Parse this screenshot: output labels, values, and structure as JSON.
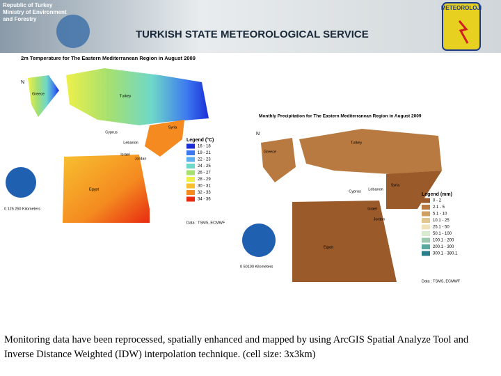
{
  "header": {
    "ministry": [
      "Republic of Turkey",
      "Ministry of Environment",
      "and Forestry"
    ],
    "title": "TURKISH STATE METEOROLOGICAL SERVICE",
    "logo": "METEOROLOJI"
  },
  "maps": [
    {
      "title": "2m Temperature for The Eastern Mediterranean Region in August 2009",
      "north": "N",
      "legend_title": "Legend (°C)",
      "legend": [
        {
          "label": "16 - 18",
          "color": "#1a2fd6"
        },
        {
          "label": "19 - 21",
          "color": "#3c78f0"
        },
        {
          "label": "22 - 23",
          "color": "#5fb0f0"
        },
        {
          "label": "24 - 25",
          "color": "#6fd8c8"
        },
        {
          "label": "26 - 27",
          "color": "#a6e070"
        },
        {
          "label": "28 - 29",
          "color": "#eef04a"
        },
        {
          "label": "30 - 31",
          "color": "#f8c030"
        },
        {
          "label": "32 - 33",
          "color": "#f48a20"
        },
        {
          "label": "34 - 36",
          "color": "#e82a10"
        }
      ],
      "labels": [
        "Greece",
        "Turkey",
        "Syria",
        "Cyprus",
        "Lebanon",
        "Israel",
        "Jordan",
        "Egypt"
      ],
      "scale": "0 125 250 Kilometers",
      "source": "Data : TSMS, ECMWF"
    },
    {
      "title": "Monthly Precipitation  for The Eastern Mediterranean Region in August 2009",
      "north": "N",
      "legend_title": "Legend (mm)",
      "legend": [
        {
          "label": "0 - 2",
          "color": "#9a5a2a"
        },
        {
          "label": "2.1 - 5",
          "color": "#b87a40"
        },
        {
          "label": "5.1 - 10",
          "color": "#cfa060"
        },
        {
          "label": "10.1 - 25",
          "color": "#e2c690"
        },
        {
          "label": "25.1 - 50",
          "color": "#efe2b8"
        },
        {
          "label": "50.1 - 100",
          "color": "#d8ecd0"
        },
        {
          "label": "100.1 - 200",
          "color": "#9ccab0"
        },
        {
          "label": "200.1 - 300",
          "color": "#5aa8a0"
        },
        {
          "label": "300.1 - 380.1",
          "color": "#2a7e8a"
        }
      ],
      "labels": [
        "Greece",
        "Turkey",
        "Syria",
        "Cyprus",
        "Lebanon",
        "Israel",
        "Jordan",
        "Egypt"
      ],
      "scale": "0 50100 Kilometers",
      "source": "Data : TSMS, ECMWF"
    }
  ],
  "caption": "Monitoring data have been reprocessed, spatially enhanced and mapped by using ArcGIS Spatial Analyze Tool and Inverse Distance Weighted (IDW) interpolation technique. (cell size: 3x3km)"
}
